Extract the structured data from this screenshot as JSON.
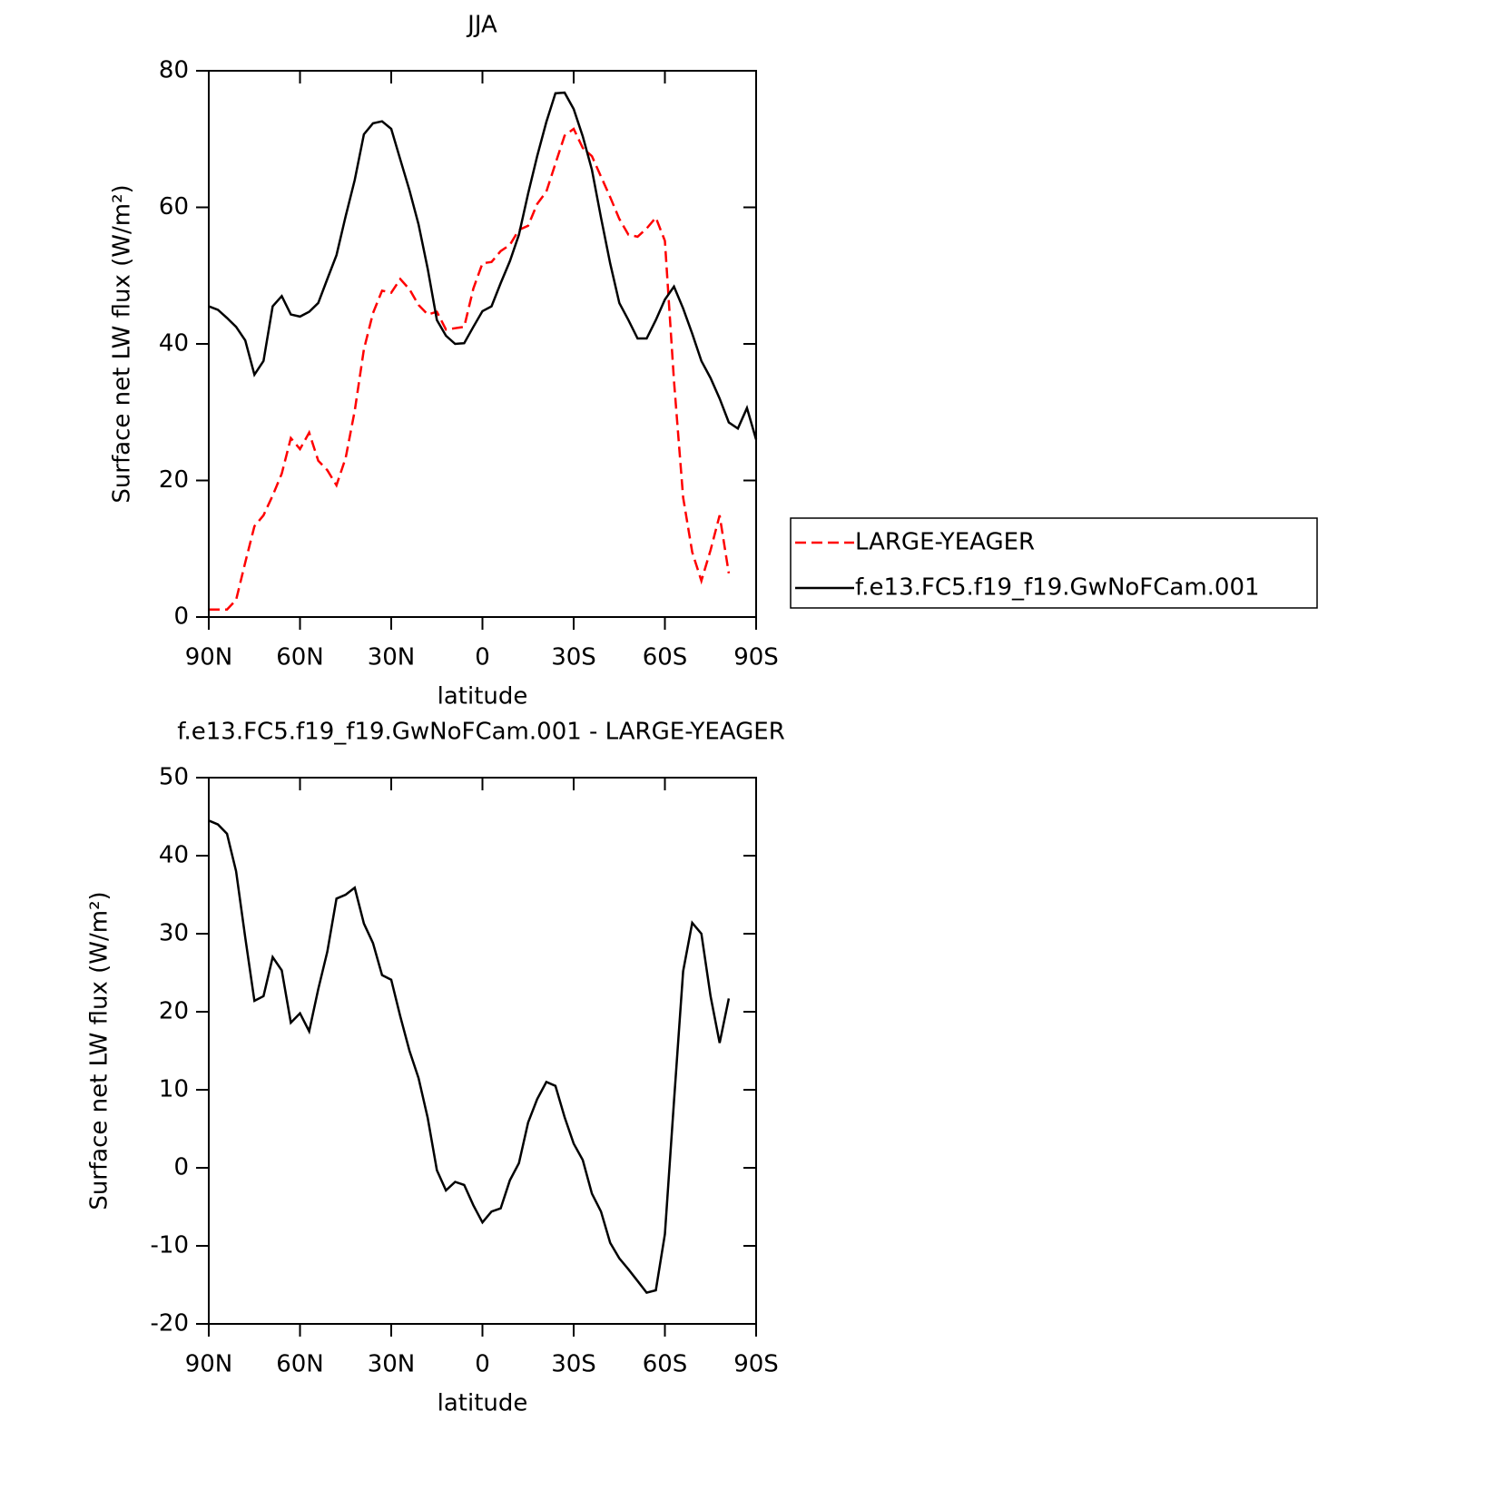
{
  "chart_data": [
    {
      "type": "line",
      "title": "JJA",
      "xlabel": "latitude",
      "ylabel": "Surface net LW flux (W/m²)",
      "x": [
        90,
        87,
        84,
        81,
        78,
        75,
        72,
        69,
        66,
        63,
        60,
        57,
        54,
        51,
        48,
        45,
        42,
        39,
        36,
        33,
        30,
        27,
        24,
        21,
        18,
        15,
        12,
        9,
        6,
        3,
        0,
        -3,
        -6,
        -9,
        -12,
        -15,
        -18,
        -21,
        -24,
        -27,
        -30,
        -33,
        -36,
        -39,
        -42,
        -45,
        -48,
        -51,
        -54,
        -57,
        -60,
        -63,
        -66,
        -69,
        -72,
        -75,
        -78,
        -81,
        -84,
        -87,
        -90
      ],
      "series": [
        {
          "name": "LARGE-YEAGER",
          "color": "#ff0000",
          "linestyle": "dashed",
          "values": [
            1.1,
            1.1,
            1.1,
            2.5,
            8,
            13.3,
            14.9,
            17.8,
            21,
            26.2,
            24.6,
            27,
            22.9,
            21.5,
            19.3,
            23.3,
            30.2,
            39.2,
            44.5,
            47.8,
            47.5,
            49.5,
            48,
            45.7,
            44.3,
            44.7,
            42.1,
            42.3,
            42.5,
            48.1,
            51.8,
            52,
            53.6,
            54.5,
            56.7,
            57.3,
            60.5,
            62.3,
            66.4,
            70.5,
            71.5,
            68.7,
            67.5,
            64.5,
            61.5,
            58.3,
            56,
            55.7,
            56.9,
            58.5,
            55.1,
            34.6,
            17.5,
            9.5,
            5.3,
            9.8,
            14.9,
            6.4,
            null,
            null,
            null
          ]
        },
        {
          "name": "f.e13.FC5.f19_f19.GwNoFCam.001",
          "color": "#000000",
          "linestyle": "solid",
          "values": [
            45.5,
            45.0,
            43.8,
            42.5,
            40.5,
            35.5,
            37.5,
            45.5,
            47.0,
            44.3,
            44.0,
            44.7,
            46.0,
            49.5,
            53.0,
            58.7,
            64.0,
            70.7,
            72.3,
            72.6,
            71.5,
            67.0,
            62.5,
            57.5,
            51.0,
            43.5,
            41.2,
            40.0,
            40.1,
            42.5,
            44.8,
            45.5,
            48.9,
            52.1,
            56.0,
            62.0,
            67.5,
            72.5,
            76.7,
            76.8,
            74.4,
            70.4,
            65.5,
            58.5,
            51.8,
            46.0,
            43.5,
            40.8,
            40.8,
            43.5,
            46.5,
            48.4,
            45.2,
            41.5,
            37.5,
            35.0,
            32.0,
            28.5,
            27.6,
            30.6,
            26.0
          ]
        }
      ],
      "xlim": [
        90,
        -90
      ],
      "xticks": [
        {
          "value": 90,
          "label": "90N"
        },
        {
          "value": 60,
          "label": "60N"
        },
        {
          "value": 30,
          "label": "30N"
        },
        0,
        {
          "value": -30,
          "label": "30S"
        },
        {
          "value": -60,
          "label": "60S"
        },
        {
          "value": -90,
          "label": "90S"
        }
      ],
      "ylim": [
        0,
        80
      ],
      "yticks": [
        0,
        20,
        40,
        60,
        80
      ],
      "legend": "right"
    },
    {
      "type": "line",
      "title": "f.e13.FC5.f19_f19.GwNoFCam.001 - LARGE-YEAGER",
      "xlabel": "latitude",
      "ylabel": "Surface net LW flux (W/m²)",
      "x": [
        90,
        87,
        84,
        81,
        78,
        75,
        72,
        69,
        66,
        63,
        60,
        57,
        54,
        51,
        48,
        45,
        42,
        39,
        36,
        33,
        30,
        27,
        24,
        21,
        18,
        15,
        12,
        9,
        6,
        3,
        0,
        -3,
        -6,
        -9,
        -12,
        -15,
        -18,
        -21,
        -24,
        -27,
        -30,
        -33,
        -36,
        -39,
        -42,
        -45,
        -48,
        -51,
        -54,
        -57,
        -60,
        -63,
        -66,
        -69,
        -72,
        -75,
        -78,
        -81,
        -84,
        -87,
        -90
      ],
      "series": [
        {
          "color": "#000000",
          "linestyle": "solid",
          "values": [
            44.5,
            44,
            42.8,
            38,
            29.5,
            21.4,
            22,
            27,
            25.3,
            18.6,
            19.8,
            17.5,
            22.9,
            27.7,
            34.5,
            35,
            35.9,
            31.3,
            28.8,
            24.7,
            24.1,
            19.4,
            15,
            11.5,
            6.4,
            -0.3,
            -2.9,
            -1.8,
            -2.2,
            -4.8,
            -7,
            -5.6,
            -5.2,
            -1.6,
            0.6,
            5.8,
            8.8,
            11,
            10.5,
            6.5,
            3.1,
            1.0,
            -3.3,
            -5.6,
            -9.6,
            -11.6,
            -13,
            -14.5,
            -16,
            -15.7,
            -8.5,
            8.5,
            25.2,
            31.4,
            30,
            22,
            16,
            21.7,
            null,
            null,
            null
          ]
        }
      ],
      "xlim": [
        90,
        -90
      ],
      "xticks": [
        {
          "value": 90,
          "label": "90N"
        },
        {
          "value": 60,
          "label": "60N"
        },
        {
          "value": 30,
          "label": "30N"
        },
        0,
        {
          "value": -30,
          "label": "30S"
        },
        {
          "value": -60,
          "label": "60S"
        },
        {
          "value": -90,
          "label": "90S"
        }
      ],
      "ylim": [
        -20,
        50
      ],
      "yticks": [
        -20,
        -10,
        0,
        10,
        20,
        30,
        40,
        50
      ]
    }
  ]
}
